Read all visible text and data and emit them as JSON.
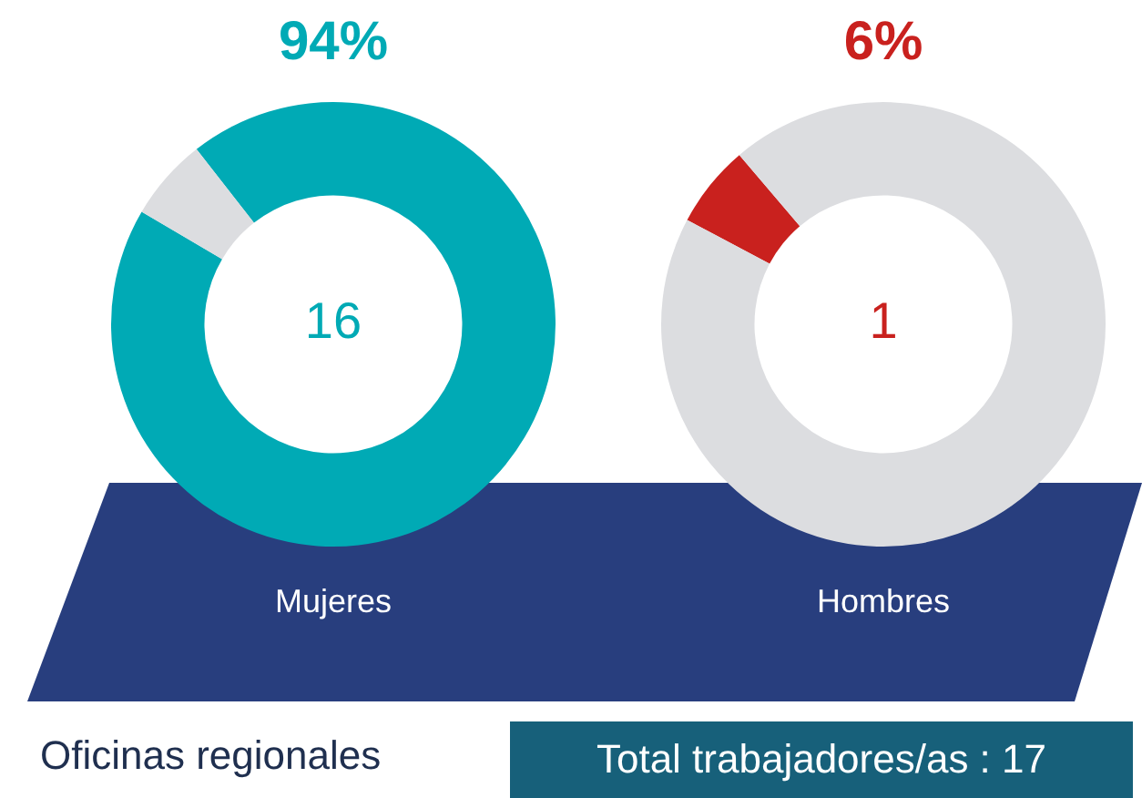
{
  "chart_data": [
    {
      "type": "donut",
      "title": "94%",
      "categories": [
        null,
        null
      ],
      "values": [
        94,
        6
      ],
      "colors": [
        "#00aab5",
        "#dcdde0"
      ],
      "annotations": [
        "16",
        "Mujeres"
      ],
      "legend": false
    },
    {
      "type": "donut",
      "title": "6%",
      "categories": [
        null,
        null
      ],
      "values": [
        6,
        94
      ],
      "colors": [
        "#c9211e",
        "#dcdde0"
      ],
      "annotations": [
        "1",
        "Hombres"
      ],
      "legend": false
    },
    {
      "type": "other",
      "annotations": [
        "Oficinas regionales",
        "Total trabajadores/as : 17"
      ]
    }
  ]
}
